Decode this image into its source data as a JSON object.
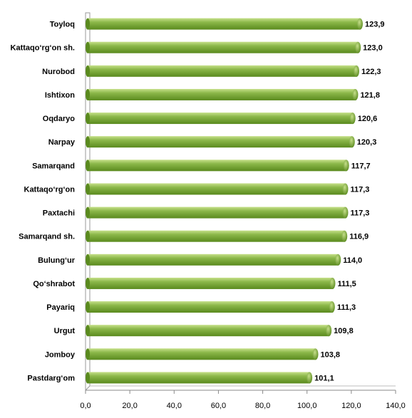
{
  "chart_data": {
    "type": "bar",
    "orientation": "horizontal",
    "categories": [
      "Toyloq",
      "Kattaqo‘rg‘on sh.",
      "Nurobod",
      "Ishtixon",
      "Oqdaryo",
      "Narpay",
      "Samarqand",
      "Kattaqo‘rg‘on",
      "Paxtachi",
      "Samarqand sh.",
      "Bulung‘ur",
      "Qo‘shrabot",
      "Payariq",
      "Urgut",
      "Jomboy",
      "Pastdarg‘om"
    ],
    "values": [
      123.9,
      123.0,
      122.3,
      121.8,
      120.6,
      120.3,
      117.7,
      117.3,
      117.3,
      116.9,
      114.0,
      111.5,
      111.3,
      109.8,
      103.8,
      101.1
    ],
    "value_labels": [
      "123,9",
      "123,0",
      "122,3",
      "121,8",
      "120,6",
      "120,3",
      "117,7",
      "117,3",
      "117,3",
      "116,9",
      "114,0",
      "111,5",
      "111,3",
      "109,8",
      "103,8",
      "101,1"
    ],
    "xticks": [
      "0,0",
      "20,0",
      "40,0",
      "60,0",
      "80,0",
      "100,0",
      "120,0",
      "140,0"
    ],
    "xlim": [
      0,
      140
    ],
    "title": "",
    "xlabel": "",
    "ylabel": "",
    "grid": false,
    "legend": false,
    "bar_color": "#8cb84a",
    "bar_dark": "#5a8a1e",
    "bar_light": "#c6e08a"
  }
}
